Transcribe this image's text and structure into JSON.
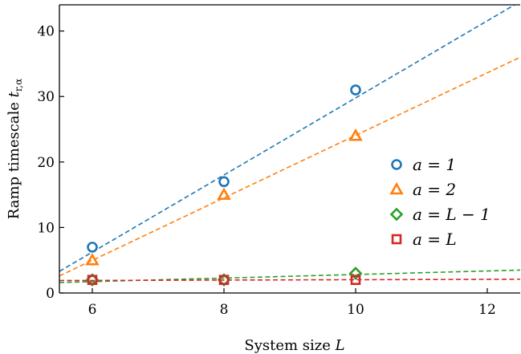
{
  "chart_data": {
    "type": "scatter",
    "xlabel": "System size L",
    "ylabel": "Ramp timescale t_r,α",
    "xlim": [
      5.5,
      12.5
    ],
    "ylim": [
      0,
      44
    ],
    "xticks": [
      6,
      8,
      10,
      12
    ],
    "yticks": [
      0,
      10,
      20,
      30,
      40
    ],
    "x": [
      6,
      8,
      10
    ],
    "grid": false,
    "legend_position": "right",
    "series": [
      {
        "name": "a = 1",
        "marker": "circle",
        "color": "#1f77b4",
        "values": [
          7,
          17,
          31
        ],
        "fit": [
          [
            5.5,
            3.3
          ],
          [
            12.5,
            44.5
          ]
        ]
      },
      {
        "name": "a = 2",
        "marker": "triangle",
        "color": "#ff7f0e",
        "values": [
          5,
          15,
          24
        ],
        "fit": [
          [
            5.5,
            2.6
          ],
          [
            12.5,
            36.0
          ]
        ]
      },
      {
        "name": "a = L − 1",
        "marker": "diamond",
        "color": "#2ca02c",
        "values": [
          2,
          2,
          3
        ],
        "fit": [
          [
            5.5,
            1.6
          ],
          [
            12.5,
            3.5
          ]
        ]
      },
      {
        "name": "a = L",
        "marker": "square",
        "color": "#d62728",
        "values": [
          2,
          2,
          2
        ],
        "fit": [
          [
            5.5,
            1.9
          ],
          [
            12.5,
            2.1
          ]
        ]
      }
    ]
  }
}
